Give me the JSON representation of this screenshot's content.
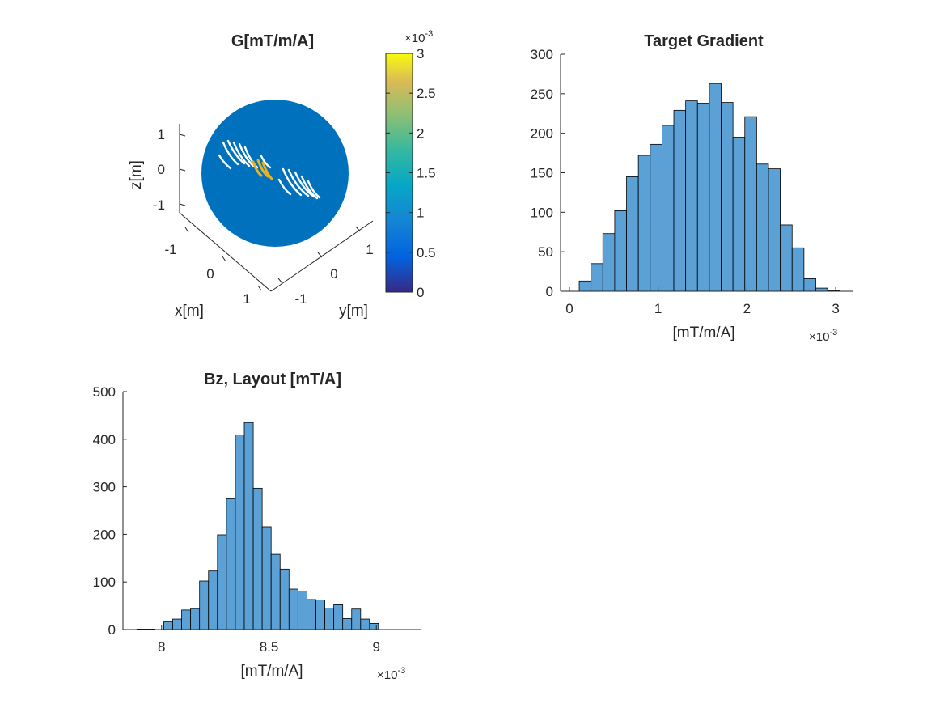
{
  "colors": {
    "bar_fill": "#5BA1D6",
    "bar_edge": "#000000",
    "sphere": "#0072BD",
    "highlight": "#EDB120",
    "axis": "#262626"
  },
  "chart_data": [
    {
      "id": "g-sphere",
      "type": "scatter",
      "title": "G[mT/m/A]",
      "xlabel": "x[m]",
      "ylabel": "y[m]",
      "zlabel": "z[m]",
      "x_ticks": [
        "-1",
        "0",
        "1"
      ],
      "y_ticks": [
        "-1",
        "0",
        "1"
      ],
      "z_ticks": [
        "1",
        "0",
        "-1"
      ],
      "colorbar": {
        "colormap": "parula",
        "ticks": [
          "3",
          "2.5",
          "2",
          "1.5",
          "1",
          "0.5",
          "0"
        ],
        "range": [
          0,
          3
        ],
        "exponent": "×10",
        "exponent_power": "-3"
      }
    },
    {
      "id": "target-gradient",
      "type": "bar",
      "title": "Target Gradient",
      "xlabel": "[mT/m/A]",
      "ylabel": "",
      "xlim": [
        -0.1,
        3.2
      ],
      "ylim": [
        0,
        300
      ],
      "x_ticks": [
        "0",
        "1",
        "2",
        "3"
      ],
      "x_tick_values": [
        0,
        1,
        2,
        3
      ],
      "y_ticks": [
        "0",
        "50",
        "100",
        "150",
        "200",
        "250",
        "300"
      ],
      "y_tick_values": [
        0,
        50,
        100,
        150,
        200,
        250,
        300
      ],
      "exponent": "×10",
      "exponent_power": "-3",
      "bin_start": 0.11,
      "bin_width": 0.1333,
      "values": [
        13,
        35,
        73,
        102,
        145,
        172,
        186,
        210,
        229,
        241,
        238,
        263,
        239,
        195,
        221,
        161,
        155,
        84,
        55,
        16,
        4,
        1
      ]
    },
    {
      "id": "bz-layout",
      "type": "bar",
      "title": "Bz, Layout [mT/A]",
      "xlabel": "[mT/m/A]",
      "ylabel": "",
      "xlim": [
        7.82,
        9.21
      ],
      "ylim": [
        0,
        500
      ],
      "x_ticks": [
        "8",
        "8.5",
        "9"
      ],
      "x_tick_values": [
        8,
        8.5,
        9
      ],
      "y_ticks": [
        "0",
        "100",
        "200",
        "300",
        "400",
        "500"
      ],
      "y_tick_values": [
        0,
        100,
        200,
        300,
        400,
        500
      ],
      "exponent": "×10",
      "exponent_power": "-3",
      "bin_start": 7.885,
      "bin_width": 0.04167,
      "values": [
        1,
        1,
        0,
        16,
        22,
        41,
        44,
        102,
        123,
        199,
        275,
        409,
        435,
        297,
        216,
        158,
        127,
        85,
        81,
        63,
        62,
        45,
        52,
        23,
        43,
        22,
        13
      ]
    }
  ]
}
